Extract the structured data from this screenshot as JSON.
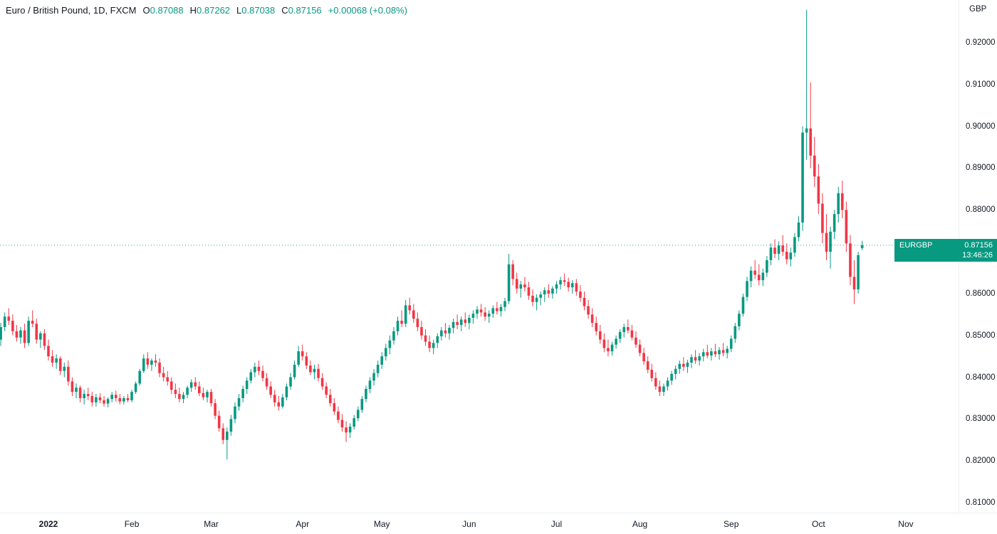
{
  "header": {
    "title": "Euro / British Pound, 1D, FXCM",
    "ohlc": {
      "open_label": "O",
      "open": "0.87088",
      "high_label": "H",
      "high": "0.87262",
      "low_label": "L",
      "low": "0.87038",
      "close_label": "C",
      "close": "0.87156",
      "change": "+0.00068 (+0.08%)"
    }
  },
  "price_axis": {
    "currency": "GBP",
    "last_price_label": {
      "symbol": "EURGBP",
      "price": "0.87156",
      "countdown": "13:46:26"
    }
  },
  "colors": {
    "up": "#089981",
    "down": "#f23645",
    "text": "#131722",
    "label_bg": "#089981",
    "price_line": "#089981"
  },
  "chart_data": {
    "type": "candlestick",
    "title": "Euro / British Pound, 1D, FXCM",
    "symbol": "EURGBP",
    "interval": "1D",
    "exchange": "FXCM",
    "ylabel": "GBP",
    "ylim": [
      0.8075,
      0.929
    ],
    "grid": false,
    "last_price": 0.87156,
    "price_axis_ticks": [
      0.92,
      0.91,
      0.9,
      0.89,
      0.88,
      0.87,
      0.86,
      0.85,
      0.84,
      0.83,
      0.82,
      0.81
    ],
    "x_ticks": [
      {
        "label": "2022",
        "index": 12,
        "is_year": true
      },
      {
        "label": "Feb",
        "index": 33
      },
      {
        "label": "Mar",
        "index": 53
      },
      {
        "label": "Apr",
        "index": 76
      },
      {
        "label": "May",
        "index": 96
      },
      {
        "label": "Jun",
        "index": 118
      },
      {
        "label": "Jul",
        "index": 140
      },
      {
        "label": "Aug",
        "index": 161
      },
      {
        "label": "Sep",
        "index": 184
      },
      {
        "label": "Oct",
        "index": 206
      },
      {
        "label": "Nov",
        "index": 228
      }
    ],
    "candles_format": [
      "open",
      "high",
      "low",
      "close"
    ],
    "candles": [
      [
        0.849,
        0.853,
        0.8475,
        0.852
      ],
      [
        0.852,
        0.8555,
        0.851,
        0.8545
      ],
      [
        0.8545,
        0.8565,
        0.8525,
        0.8535
      ],
      [
        0.8535,
        0.855,
        0.85,
        0.851
      ],
      [
        0.851,
        0.8525,
        0.8485,
        0.8495
      ],
      [
        0.8495,
        0.852,
        0.848,
        0.8512
      ],
      [
        0.8512,
        0.8528,
        0.847,
        0.8482
      ],
      [
        0.8482,
        0.8545,
        0.8475,
        0.8535
      ],
      [
        0.8535,
        0.856,
        0.852,
        0.8528
      ],
      [
        0.8528,
        0.854,
        0.848,
        0.849
      ],
      [
        0.849,
        0.851,
        0.847,
        0.8505
      ],
      [
        0.8505,
        0.8515,
        0.8465,
        0.8475
      ],
      [
        0.8475,
        0.849,
        0.844,
        0.845
      ],
      [
        0.845,
        0.8465,
        0.8425,
        0.8435
      ],
      [
        0.8435,
        0.8455,
        0.842,
        0.8445
      ],
      [
        0.8445,
        0.845,
        0.8405,
        0.8415
      ],
      [
        0.8415,
        0.8435,
        0.84,
        0.8425
      ],
      [
        0.8425,
        0.844,
        0.838,
        0.839
      ],
      [
        0.839,
        0.84,
        0.8355,
        0.8365
      ],
      [
        0.8365,
        0.8385,
        0.835,
        0.8375
      ],
      [
        0.8375,
        0.838,
        0.834,
        0.835
      ],
      [
        0.835,
        0.837,
        0.8335,
        0.836
      ],
      [
        0.836,
        0.8375,
        0.8345,
        0.8355
      ],
      [
        0.8355,
        0.8365,
        0.833,
        0.834
      ],
      [
        0.834,
        0.836,
        0.833,
        0.8352
      ],
      [
        0.8352,
        0.8362,
        0.8338,
        0.8345
      ],
      [
        0.8345,
        0.8355,
        0.833,
        0.8337
      ],
      [
        0.8337,
        0.8352,
        0.8328,
        0.8348
      ],
      [
        0.8348,
        0.8365,
        0.834,
        0.8358
      ],
      [
        0.8358,
        0.8368,
        0.8342,
        0.835
      ],
      [
        0.835,
        0.836,
        0.8335,
        0.8342
      ],
      [
        0.8342,
        0.8355,
        0.8335,
        0.835
      ],
      [
        0.835,
        0.836,
        0.834,
        0.8345
      ],
      [
        0.8345,
        0.837,
        0.834,
        0.8365
      ],
      [
        0.8365,
        0.839,
        0.836,
        0.8385
      ],
      [
        0.8385,
        0.842,
        0.838,
        0.8415
      ],
      [
        0.8415,
        0.8455,
        0.841,
        0.8445
      ],
      [
        0.8445,
        0.846,
        0.842,
        0.843
      ],
      [
        0.843,
        0.8445,
        0.8415,
        0.844
      ],
      [
        0.844,
        0.8455,
        0.8425,
        0.8435
      ],
      [
        0.8435,
        0.8445,
        0.84,
        0.841
      ],
      [
        0.841,
        0.8425,
        0.839,
        0.84
      ],
      [
        0.84,
        0.8415,
        0.838,
        0.839
      ],
      [
        0.839,
        0.84,
        0.836,
        0.837
      ],
      [
        0.837,
        0.8385,
        0.835,
        0.836
      ],
      [
        0.836,
        0.8375,
        0.834,
        0.8348
      ],
      [
        0.8348,
        0.8365,
        0.8338,
        0.8358
      ],
      [
        0.8358,
        0.838,
        0.835,
        0.8375
      ],
      [
        0.8375,
        0.8395,
        0.8365,
        0.8388
      ],
      [
        0.8388,
        0.84,
        0.837,
        0.8378
      ],
      [
        0.8378,
        0.839,
        0.8355,
        0.8362
      ],
      [
        0.8362,
        0.8375,
        0.8345,
        0.8352
      ],
      [
        0.8352,
        0.837,
        0.834,
        0.8365
      ],
      [
        0.8365,
        0.8372,
        0.833,
        0.8338
      ],
      [
        0.8338,
        0.8348,
        0.83,
        0.8308
      ],
      [
        0.8308,
        0.832,
        0.827,
        0.8278
      ],
      [
        0.8278,
        0.829,
        0.824,
        0.825
      ],
      [
        0.825,
        0.828,
        0.8203,
        0.827
      ],
      [
        0.827,
        0.831,
        0.826,
        0.83
      ],
      [
        0.83,
        0.834,
        0.829,
        0.833
      ],
      [
        0.833,
        0.836,
        0.832,
        0.835
      ],
      [
        0.835,
        0.838,
        0.834,
        0.8372
      ],
      [
        0.8372,
        0.84,
        0.836,
        0.8392
      ],
      [
        0.8392,
        0.842,
        0.8385,
        0.8412
      ],
      [
        0.8412,
        0.8435,
        0.84,
        0.8425
      ],
      [
        0.8425,
        0.844,
        0.8405,
        0.8415
      ],
      [
        0.8415,
        0.8428,
        0.839,
        0.8398
      ],
      [
        0.8398,
        0.841,
        0.837,
        0.8378
      ],
      [
        0.8378,
        0.839,
        0.835,
        0.8358
      ],
      [
        0.8358,
        0.837,
        0.833,
        0.834
      ],
      [
        0.834,
        0.8355,
        0.832,
        0.833
      ],
      [
        0.833,
        0.836,
        0.8325,
        0.8352
      ],
      [
        0.8352,
        0.8385,
        0.8345,
        0.8378
      ],
      [
        0.8378,
        0.841,
        0.837,
        0.84
      ],
      [
        0.84,
        0.844,
        0.8395,
        0.843
      ],
      [
        0.843,
        0.8475,
        0.8425,
        0.8462
      ],
      [
        0.8462,
        0.8478,
        0.844,
        0.845
      ],
      [
        0.845,
        0.846,
        0.842,
        0.8428
      ],
      [
        0.8428,
        0.844,
        0.8405,
        0.8412
      ],
      [
        0.8412,
        0.843,
        0.8395,
        0.842
      ],
      [
        0.842,
        0.8432,
        0.839,
        0.8398
      ],
      [
        0.8398,
        0.841,
        0.837,
        0.8378
      ],
      [
        0.8378,
        0.8388,
        0.835,
        0.8358
      ],
      [
        0.8358,
        0.8372,
        0.833,
        0.8338
      ],
      [
        0.8338,
        0.835,
        0.831,
        0.8318
      ],
      [
        0.8318,
        0.833,
        0.829,
        0.8298
      ],
      [
        0.8298,
        0.8312,
        0.827,
        0.828
      ],
      [
        0.828,
        0.8295,
        0.8245,
        0.8268
      ],
      [
        0.8268,
        0.829,
        0.8255,
        0.8282
      ],
      [
        0.8282,
        0.831,
        0.8275,
        0.8302
      ],
      [
        0.8302,
        0.833,
        0.8295,
        0.8322
      ],
      [
        0.8322,
        0.8355,
        0.8315,
        0.8348
      ],
      [
        0.8348,
        0.838,
        0.834,
        0.8372
      ],
      [
        0.8372,
        0.84,
        0.8362,
        0.8392
      ],
      [
        0.8392,
        0.842,
        0.838,
        0.841
      ],
      [
        0.841,
        0.844,
        0.84,
        0.843
      ],
      [
        0.843,
        0.846,
        0.842,
        0.845
      ],
      [
        0.845,
        0.848,
        0.844,
        0.847
      ],
      [
        0.847,
        0.85,
        0.8455,
        0.8488
      ],
      [
        0.8488,
        0.852,
        0.8478,
        0.851
      ],
      [
        0.851,
        0.8545,
        0.85,
        0.8535
      ],
      [
        0.8535,
        0.856,
        0.852,
        0.8528
      ],
      [
        0.8528,
        0.8585,
        0.852,
        0.8572
      ],
      [
        0.8572,
        0.859,
        0.855,
        0.856
      ],
      [
        0.856,
        0.8575,
        0.853,
        0.854
      ],
      [
        0.854,
        0.8555,
        0.851,
        0.852
      ],
      [
        0.852,
        0.8535,
        0.849,
        0.85
      ],
      [
        0.85,
        0.8515,
        0.8475,
        0.8485
      ],
      [
        0.8485,
        0.85,
        0.846,
        0.847
      ],
      [
        0.847,
        0.849,
        0.8455,
        0.8482
      ],
      [
        0.8482,
        0.8505,
        0.847,
        0.8498
      ],
      [
        0.8498,
        0.852,
        0.8488,
        0.8512
      ],
      [
        0.8512,
        0.853,
        0.8495,
        0.8505
      ],
      [
        0.8505,
        0.8525,
        0.849,
        0.8518
      ],
      [
        0.8518,
        0.854,
        0.8505,
        0.8532
      ],
      [
        0.8532,
        0.855,
        0.8515,
        0.8525
      ],
      [
        0.8525,
        0.8545,
        0.851,
        0.8538
      ],
      [
        0.8538,
        0.8555,
        0.852,
        0.853
      ],
      [
        0.853,
        0.855,
        0.8515,
        0.8542
      ],
      [
        0.8542,
        0.856,
        0.8528,
        0.8552
      ],
      [
        0.8552,
        0.857,
        0.854,
        0.8562
      ],
      [
        0.8562,
        0.8575,
        0.8545,
        0.8555
      ],
      [
        0.8555,
        0.8568,
        0.8535,
        0.8545
      ],
      [
        0.8545,
        0.856,
        0.853,
        0.8552
      ],
      [
        0.8552,
        0.8572,
        0.8542,
        0.8565
      ],
      [
        0.8565,
        0.858,
        0.855,
        0.8558
      ],
      [
        0.8558,
        0.8575,
        0.8545,
        0.8568
      ],
      [
        0.8568,
        0.859,
        0.8558,
        0.8582
      ],
      [
        0.8582,
        0.8695,
        0.8575,
        0.867
      ],
      [
        0.867,
        0.868,
        0.862,
        0.8635
      ],
      [
        0.8635,
        0.865,
        0.86,
        0.8612
      ],
      [
        0.8612,
        0.863,
        0.859,
        0.8622
      ],
      [
        0.8622,
        0.864,
        0.8605,
        0.8615
      ],
      [
        0.8615,
        0.8628,
        0.8585,
        0.8595
      ],
      [
        0.8595,
        0.861,
        0.857,
        0.858
      ],
      [
        0.858,
        0.8598,
        0.856,
        0.859
      ],
      [
        0.859,
        0.8605,
        0.8572,
        0.8598
      ],
      [
        0.8598,
        0.8615,
        0.858,
        0.8608
      ],
      [
        0.8608,
        0.8622,
        0.859,
        0.86
      ],
      [
        0.86,
        0.8618,
        0.8588,
        0.8612
      ],
      [
        0.8612,
        0.863,
        0.86,
        0.8622
      ],
      [
        0.8622,
        0.864,
        0.861,
        0.8632
      ],
      [
        0.8632,
        0.8648,
        0.8618,
        0.8628
      ],
      [
        0.8628,
        0.8638,
        0.8605,
        0.8615
      ],
      [
        0.8615,
        0.8632,
        0.86,
        0.8625
      ],
      [
        0.8625,
        0.8635,
        0.8595,
        0.8605
      ],
      [
        0.8605,
        0.862,
        0.858,
        0.859
      ],
      [
        0.859,
        0.8605,
        0.856,
        0.857
      ],
      [
        0.857,
        0.8585,
        0.854,
        0.855
      ],
      [
        0.855,
        0.8565,
        0.852,
        0.853
      ],
      [
        0.853,
        0.8545,
        0.85,
        0.851
      ],
      [
        0.851,
        0.8525,
        0.848,
        0.849
      ],
      [
        0.849,
        0.8505,
        0.846,
        0.847
      ],
      [
        0.847,
        0.849,
        0.845,
        0.8462
      ],
      [
        0.8462,
        0.8485,
        0.8452,
        0.8478
      ],
      [
        0.8478,
        0.85,
        0.8468,
        0.8492
      ],
      [
        0.8492,
        0.8515,
        0.8482,
        0.8508
      ],
      [
        0.8508,
        0.8528,
        0.8495,
        0.852
      ],
      [
        0.852,
        0.8538,
        0.8505,
        0.8512
      ],
      [
        0.8512,
        0.8525,
        0.8488,
        0.8495
      ],
      [
        0.8495,
        0.851,
        0.847,
        0.8478
      ],
      [
        0.8478,
        0.849,
        0.845,
        0.8458
      ],
      [
        0.8458,
        0.847,
        0.843,
        0.8438
      ],
      [
        0.8438,
        0.845,
        0.841,
        0.8418
      ],
      [
        0.8418,
        0.8432,
        0.839,
        0.8398
      ],
      [
        0.8398,
        0.8412,
        0.837,
        0.8378
      ],
      [
        0.8378,
        0.8392,
        0.8355,
        0.8365
      ],
      [
        0.8365,
        0.8385,
        0.8355,
        0.8378
      ],
      [
        0.8378,
        0.84,
        0.8368,
        0.8392
      ],
      [
        0.8392,
        0.8415,
        0.8382,
        0.8408
      ],
      [
        0.8408,
        0.8428,
        0.8395,
        0.842
      ],
      [
        0.842,
        0.844,
        0.8408,
        0.8432
      ],
      [
        0.8432,
        0.8448,
        0.8415,
        0.8425
      ],
      [
        0.8425,
        0.8442,
        0.841,
        0.8435
      ],
      [
        0.8435,
        0.8455,
        0.8422,
        0.8448
      ],
      [
        0.8448,
        0.8465,
        0.8432,
        0.844
      ],
      [
        0.844,
        0.8458,
        0.8428,
        0.845
      ],
      [
        0.845,
        0.8468,
        0.8438,
        0.846
      ],
      [
        0.846,
        0.8478,
        0.8445,
        0.8452
      ],
      [
        0.8452,
        0.847,
        0.844,
        0.8462
      ],
      [
        0.8462,
        0.848,
        0.8448,
        0.8455
      ],
      [
        0.8455,
        0.8472,
        0.8442,
        0.8465
      ],
      [
        0.8465,
        0.8482,
        0.845,
        0.8458
      ],
      [
        0.8458,
        0.8475,
        0.8445,
        0.8468
      ],
      [
        0.8468,
        0.85,
        0.846,
        0.8492
      ],
      [
        0.8492,
        0.853,
        0.8482,
        0.8522
      ],
      [
        0.8522,
        0.856,
        0.8512,
        0.8552
      ],
      [
        0.8552,
        0.86,
        0.8545,
        0.8592
      ],
      [
        0.8592,
        0.864,
        0.8582,
        0.863
      ],
      [
        0.863,
        0.8665,
        0.8615,
        0.8655
      ],
      [
        0.8655,
        0.868,
        0.8635,
        0.8645
      ],
      [
        0.8645,
        0.867,
        0.862,
        0.8632
      ],
      [
        0.8632,
        0.866,
        0.8618,
        0.865
      ],
      [
        0.865,
        0.869,
        0.864,
        0.868
      ],
      [
        0.868,
        0.872,
        0.8668,
        0.871
      ],
      [
        0.871,
        0.873,
        0.8685,
        0.8695
      ],
      [
        0.8695,
        0.8725,
        0.868,
        0.8715
      ],
      [
        0.8715,
        0.874,
        0.869,
        0.87
      ],
      [
        0.87,
        0.872,
        0.867,
        0.8682
      ],
      [
        0.8682,
        0.871,
        0.8665,
        0.8698
      ],
      [
        0.8698,
        0.8745,
        0.8688,
        0.8735
      ],
      [
        0.8735,
        0.8785,
        0.8725,
        0.877
      ],
      [
        0.877,
        0.9,
        0.875,
        0.8985
      ],
      [
        0.8985,
        0.9278,
        0.892,
        0.8995
      ],
      [
        0.8995,
        0.9105,
        0.89,
        0.893
      ],
      [
        0.893,
        0.8975,
        0.8855,
        0.888
      ],
      [
        0.888,
        0.891,
        0.879,
        0.8815
      ],
      [
        0.8815,
        0.884,
        0.872,
        0.8745
      ],
      [
        0.8745,
        0.879,
        0.868,
        0.87
      ],
      [
        0.87,
        0.876,
        0.866,
        0.8748
      ],
      [
        0.8748,
        0.88,
        0.873,
        0.879
      ],
      [
        0.879,
        0.8855,
        0.877,
        0.884
      ],
      [
        0.884,
        0.887,
        0.878,
        0.88
      ],
      [
        0.88,
        0.882,
        0.87,
        0.872
      ],
      [
        0.872,
        0.874,
        0.862,
        0.864
      ],
      [
        0.864,
        0.868,
        0.8575,
        0.861
      ],
      [
        0.861,
        0.87,
        0.86,
        0.8692
      ],
      [
        0.87088,
        0.87262,
        0.87038,
        0.87156
      ]
    ]
  }
}
